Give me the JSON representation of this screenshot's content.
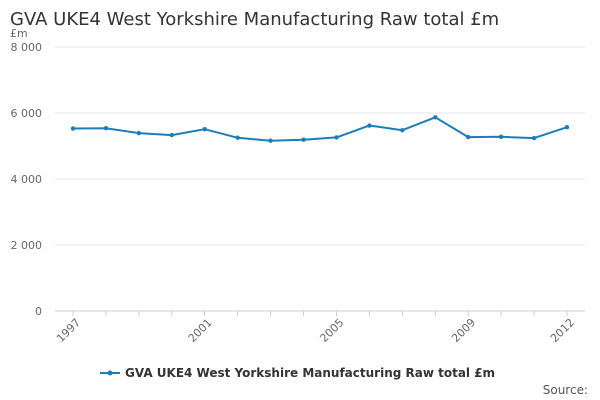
{
  "chart_data": {
    "type": "line",
    "title": "GVA UKE4 West Yorkshire Manufacturing Raw total £m",
    "unit_label": "£m",
    "xlabel": "",
    "ylabel": "",
    "x": [
      "1997",
      "1998",
      "1999",
      "2000",
      "2001",
      "2002",
      "2003",
      "2004",
      "2005",
      "2006",
      "2007",
      "2008",
      "2009",
      "2010",
      "2011",
      "2012"
    ],
    "x_tick_labels": [
      "1997",
      "2001",
      "2005",
      "2009",
      "2012"
    ],
    "y_tick_labels": [
      "0",
      "2 000",
      "4 000",
      "6 000",
      "8 000"
    ],
    "y_ticks": [
      0,
      2000,
      4000,
      6000,
      8000
    ],
    "ylim": [
      0,
      8000
    ],
    "grid": "horizontal",
    "legend_position": "bottom",
    "series": [
      {
        "name": "GVA UKE4 West Yorkshire Manufacturing Raw total £m",
        "color": "#1d7db8",
        "values": [
          5530,
          5540,
          5390,
          5330,
          5510,
          5250,
          5160,
          5190,
          5260,
          5620,
          5480,
          5870,
          5270,
          5280,
          5240,
          5570
        ]
      }
    ]
  },
  "source_label": "Source:"
}
